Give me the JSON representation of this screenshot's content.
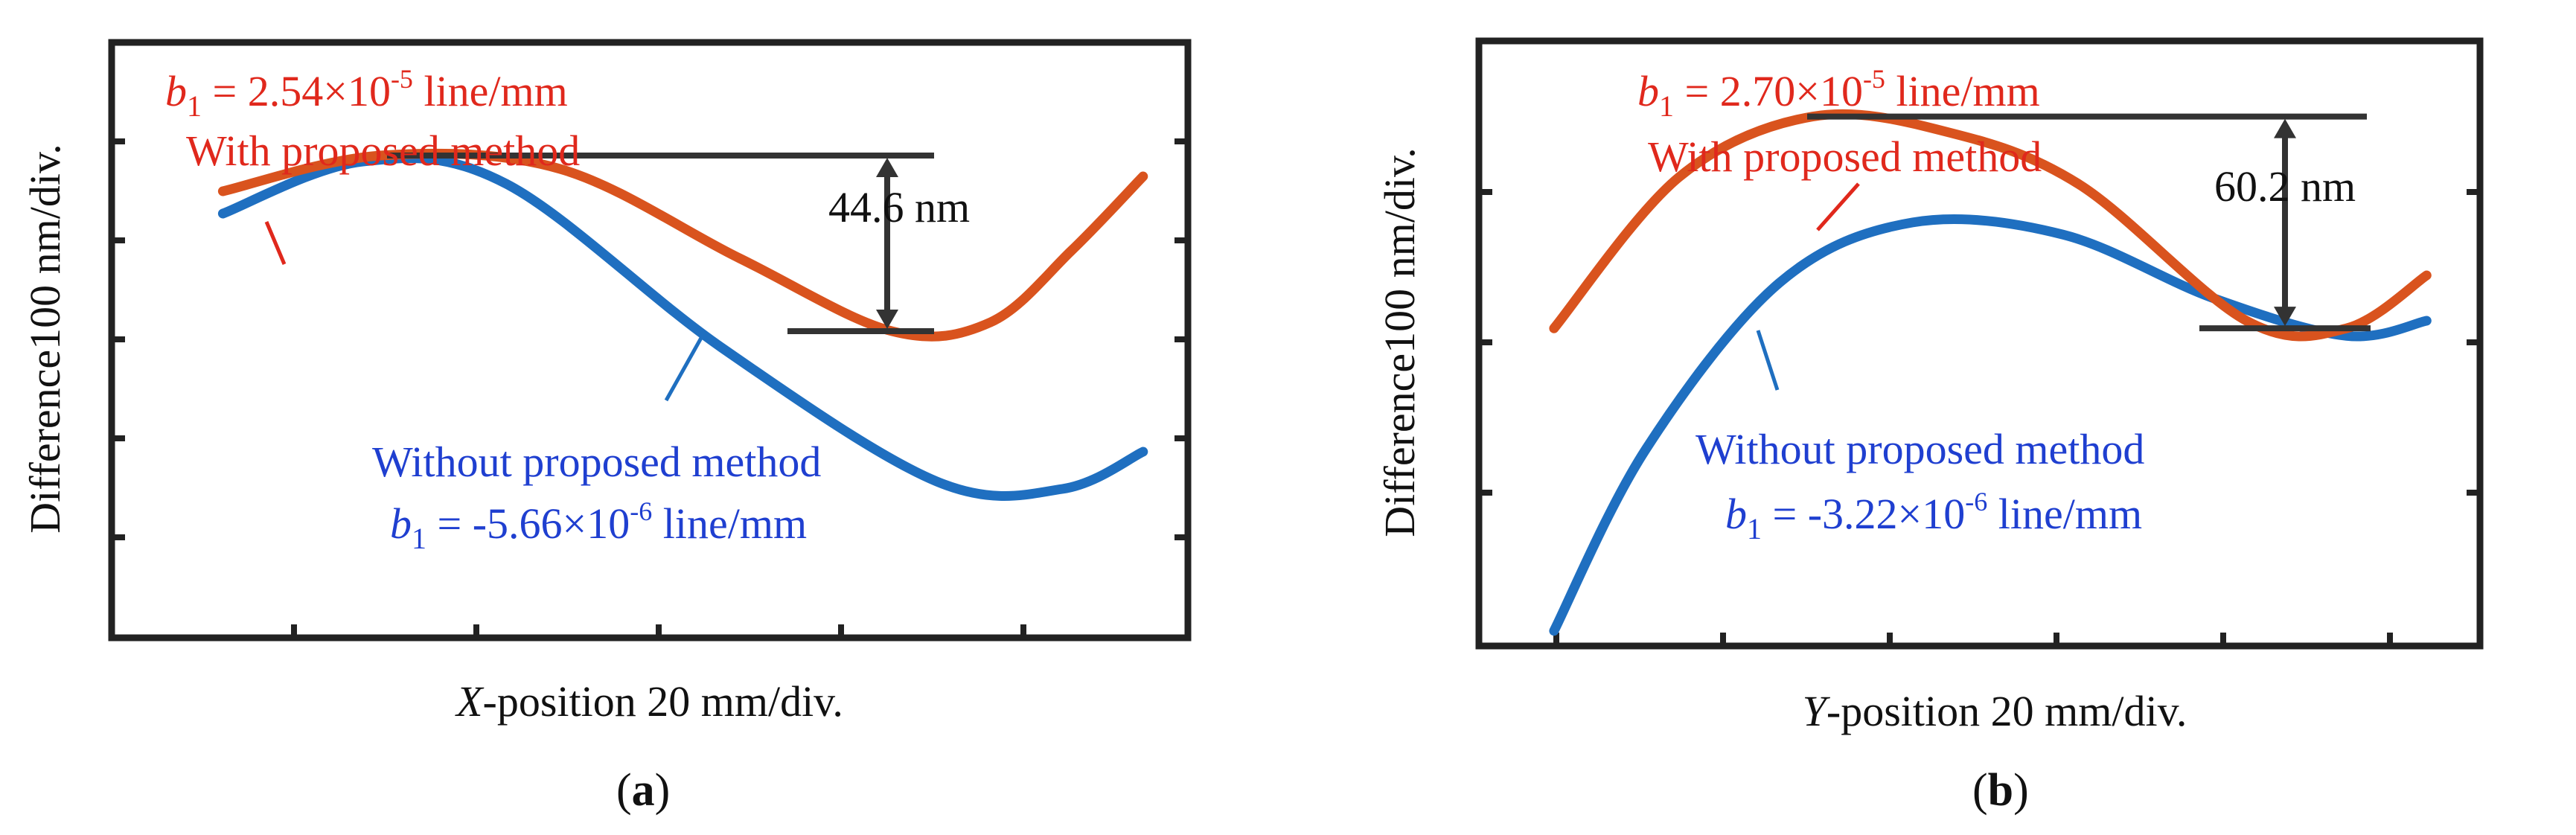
{
  "chart_data": [
    {
      "type": "line",
      "panel_label": "a",
      "xlabel_var": "X",
      "xlabel_rest": "-position 20 mm/div.",
      "ylabel": "Difference100 nm/div.",
      "x_divisions": 6,
      "y_divisions": 4,
      "xlim": [
        0,
        6
      ],
      "ylim": [
        -2,
        2
      ],
      "grid": false,
      "series": [
        {
          "name": "With proposed method",
          "color": "#d9531e",
          "b1": {
            "var": "b",
            "sub": "1",
            "pre": " = 2.54",
            "times": "×",
            "base": "10",
            "exp": "-5",
            "unit": "line/mm"
          },
          "x": [
            0.62,
            1.5,
            2.5,
            3.5,
            4.35,
            4.9,
            5.35,
            5.75
          ],
          "y": [
            1.0,
            1.24,
            1.15,
            0.55,
            0.06,
            0.12,
            0.6,
            1.1
          ]
        },
        {
          "name": "Without proposed method",
          "color": "#1f6fc0",
          "b1": {
            "var": "b",
            "sub": "1",
            "pre": " = -5.66",
            "times": "×",
            "base": "10",
            "exp": "-6",
            "unit": "line/mm"
          },
          "x": [
            0.62,
            1.4,
            2.2,
            3.4,
            4.6,
            5.3,
            5.75
          ],
          "y": [
            0.85,
            1.2,
            1.05,
            -0.05,
            -0.95,
            -1.0,
            -0.75
          ]
        }
      ],
      "annotation": {
        "label": "44.6 nm",
        "upper_y": 1.24,
        "lower_y": 0.06
      }
    },
    {
      "type": "line",
      "panel_label": "b",
      "xlabel_var": "Y",
      "xlabel_rest": "-position 20 mm/div.",
      "ylabel": "Difference100 nm/div.",
      "x_divisions": 6,
      "y_divisions": 4,
      "xlim": [
        0,
        6
      ],
      "ylim": [
        -2,
        2
      ],
      "grid": false,
      "series": [
        {
          "name": "With proposed method",
          "color": "#d9531e",
          "b1": {
            "var": "b",
            "sub": "1",
            "pre": " = 2.70",
            "times": "×",
            "base": "10",
            "exp": "-5",
            "unit": "line/mm"
          },
          "x": [
            0.45,
            1.2,
            2.0,
            2.8,
            3.6,
            4.6,
            5.2,
            5.68
          ],
          "y": [
            0.1,
            1.1,
            1.5,
            1.4,
            1.05,
            0.15,
            0.1,
            0.45
          ]
        },
        {
          "name": "Without proposed method",
          "color": "#1f6fc0",
          "b1": {
            "var": "b",
            "sub": "1",
            "pre": " = -3.22",
            "times": "×",
            "base": "10",
            "exp": "-6",
            "unit": "line/mm"
          },
          "x": [
            0.45,
            1.0,
            1.8,
            2.6,
            3.5,
            4.4,
            5.2,
            5.68
          ],
          "y": [
            -1.9,
            -0.7,
            0.4,
            0.8,
            0.72,
            0.3,
            0.05,
            0.15
          ]
        }
      ],
      "annotation": {
        "label": "60.2 nm",
        "upper_y": 1.5,
        "lower_y": 0.1
      }
    }
  ]
}
